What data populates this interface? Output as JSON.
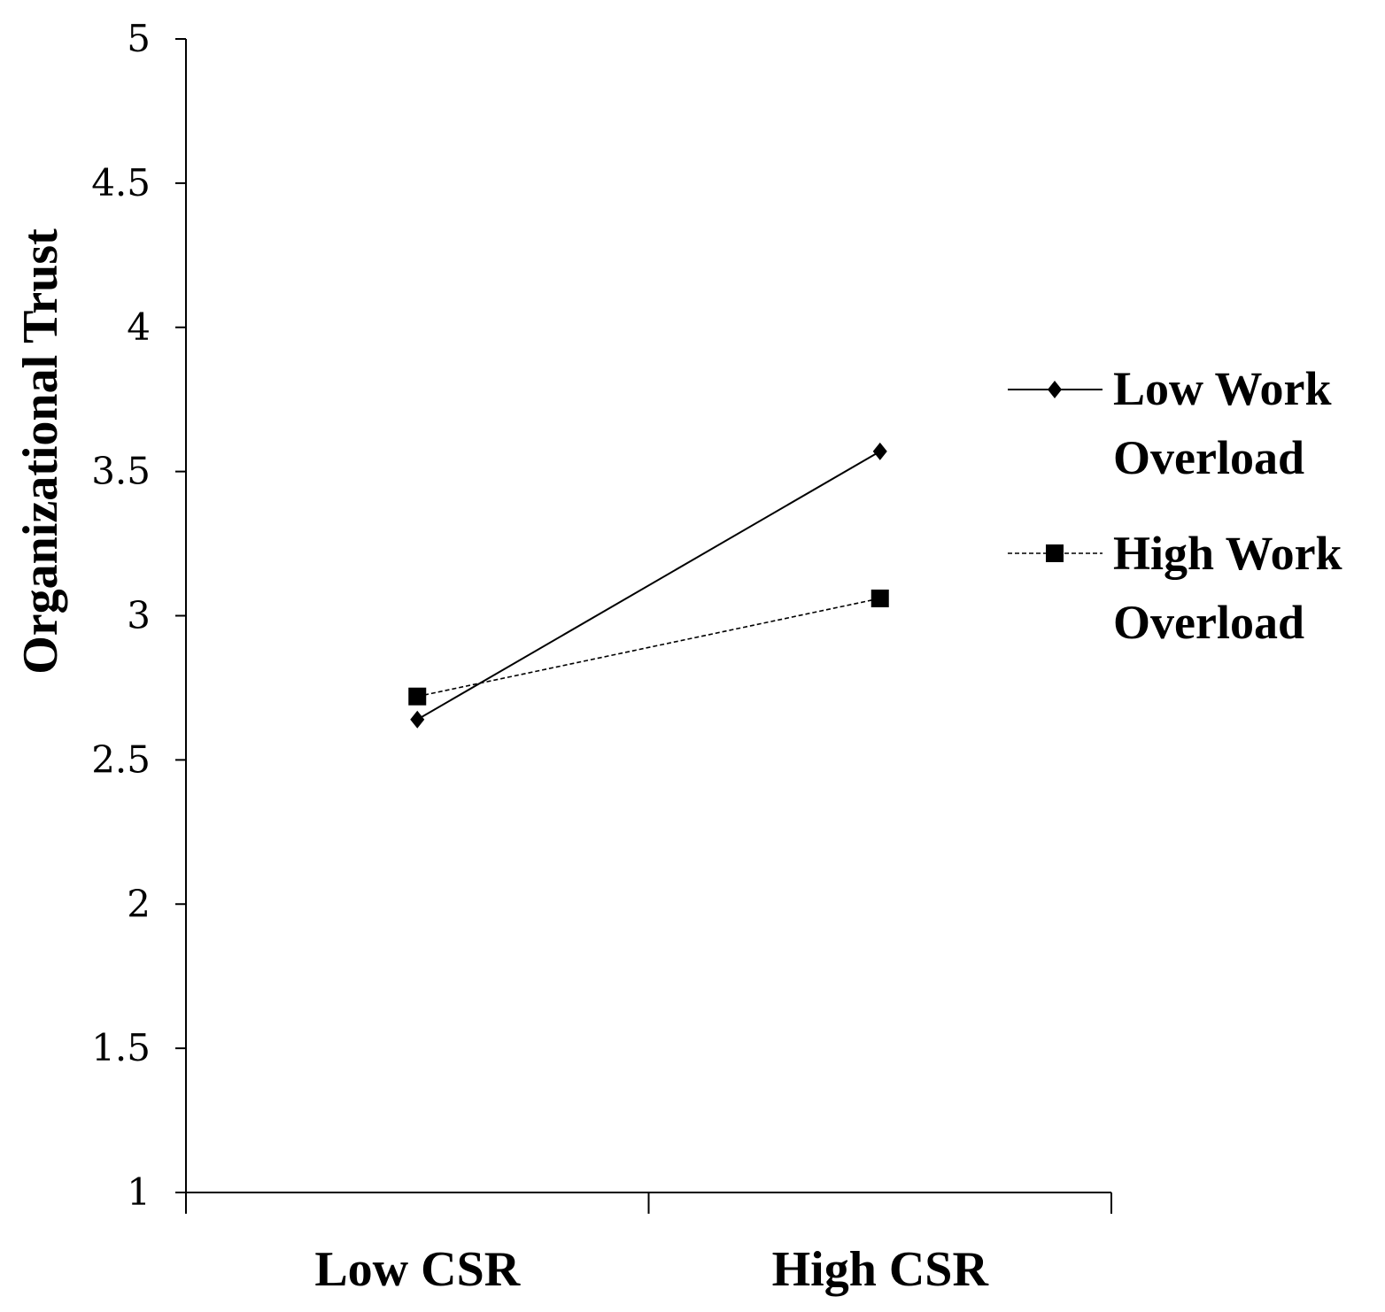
{
  "chart_data": {
    "type": "line",
    "title": "",
    "xlabel": "",
    "ylabel": "Organizational Trust",
    "categories": [
      "Low CSR",
      "High CSR"
    ],
    "ylim": [
      1,
      5
    ],
    "yticks": [
      "1",
      "1.5",
      "2",
      "2.5",
      "3",
      "3.5",
      "4",
      "4.5",
      "5"
    ],
    "grid": false,
    "legend_position": "right",
    "series": [
      {
        "name": "Low Work Overload",
        "name_lines": [
          "Low Work",
          "Overload"
        ],
        "values": [
          2.64,
          3.57
        ],
        "marker": "diamond",
        "line_style": "solid"
      },
      {
        "name": "High Work Overload",
        "name_lines": [
          "High Work",
          "Overload"
        ],
        "values": [
          2.72,
          3.06
        ],
        "marker": "square",
        "line_style": "dashed"
      }
    ]
  }
}
